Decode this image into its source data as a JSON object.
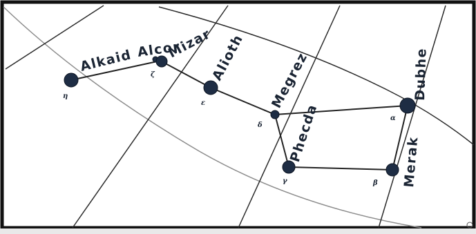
{
  "colors": {
    "frame": "#111111",
    "star": "#1e2d44",
    "line": "#222222",
    "grid": "#2a2a2a",
    "grid_light": "#9a9a9a",
    "label": "#1a2433"
  },
  "stars": [
    {
      "id": "alkaid",
      "name": "Alkaid",
      "greek": "η"
    },
    {
      "id": "alcor",
      "name": "Alcor",
      "greek": ""
    },
    {
      "id": "mizar",
      "name": "Mizar",
      "greek": "ζ"
    },
    {
      "id": "alioth",
      "name": "Alioth",
      "greek": "ε"
    },
    {
      "id": "megrez",
      "name": "Megrez",
      "greek": "δ"
    },
    {
      "id": "phecda",
      "name": "Phecda",
      "greek": "γ"
    },
    {
      "id": "merak",
      "name": "Merak",
      "greek": "β"
    },
    {
      "id": "dubhe",
      "name": "Dubhe",
      "greek": "α"
    }
  ]
}
